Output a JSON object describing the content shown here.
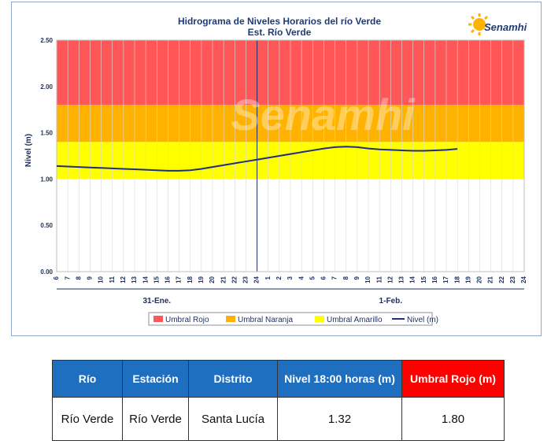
{
  "chart_data": {
    "type": "line",
    "title": "Hidrograma de Niveles Horarios del río Verde",
    "subtitle": "Est. Río Verde",
    "ylabel": "Nivel (m)",
    "ylim": [
      0,
      2.5
    ],
    "yticks": [
      "0.00",
      "0.50",
      "1.00",
      "1.50",
      "2.00",
      "2.50"
    ],
    "xticks": [
      "6",
      "7",
      "8",
      "9",
      "10",
      "11",
      "12",
      "13",
      "14",
      "15",
      "16",
      "17",
      "18",
      "19",
      "20",
      "21",
      "22",
      "23",
      "24",
      "1",
      "2",
      "3",
      "4",
      "5",
      "6",
      "7",
      "8",
      "9",
      "10",
      "11",
      "12",
      "13",
      "14",
      "15",
      "16",
      "17",
      "18",
      "19",
      "20",
      "21",
      "22",
      "23",
      "24"
    ],
    "day_labels": [
      "31-Ene.",
      "1-Feb."
    ],
    "thresholds": [
      {
        "name": "Umbral Rojo",
        "from": 1.8,
        "to": 2.5,
        "color": "#ff5757"
      },
      {
        "name": "Umbral Naranja",
        "from": 1.4,
        "to": 1.8,
        "color": "#ffb300"
      },
      {
        "name": "Umbral Amarillo",
        "from": 1.0,
        "to": 1.4,
        "color": "#ffff00"
      }
    ],
    "series": [
      {
        "name": "Nivel (m)",
        "color": "#1f2f7a",
        "values": [
          1.14,
          1.135,
          1.13,
          1.125,
          1.12,
          1.115,
          1.11,
          1.105,
          1.1,
          1.095,
          1.09,
          1.09,
          1.095,
          1.11,
          1.13,
          1.15,
          1.17,
          1.19,
          1.21,
          1.23,
          1.25,
          1.27,
          1.29,
          1.31,
          1.33,
          1.345,
          1.35,
          1.345,
          1.33,
          1.32,
          1.315,
          1.31,
          1.305,
          1.305,
          1.31,
          1.315,
          1.325
        ]
      }
    ],
    "grid": true,
    "legend_position": "bottom"
  },
  "logo": {
    "text": "Senamhi",
    "watermark": "Senamhi"
  },
  "table": {
    "headers": [
      "Río",
      "Estación",
      "Distrito",
      "Nivel 18:00 horas (m)",
      "Umbral Rojo (m)"
    ],
    "rows": [
      [
        "Río Verde",
        "Río Verde",
        "Santa Lucía",
        "1.32",
        "1.80"
      ]
    ]
  },
  "colors": {
    "header_blue": "#1f6fc0",
    "header_red": "#ff0000",
    "line": "#1f2f7a"
  }
}
